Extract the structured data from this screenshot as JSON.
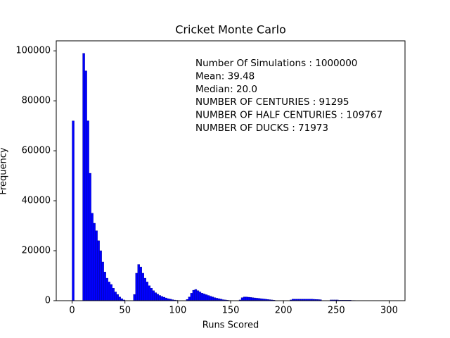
{
  "chart_data": {
    "type": "histogram",
    "title": "Cricket Monte Carlo",
    "x_label": "Runs Scored",
    "y_label": "Frequency",
    "annotation_lines": [
      "Number Of Simulations : 1000000",
      "Mean: 39.48",
      "Median: 20.0",
      "NUMBER OF CENTURIES : 91295",
      "NUMBER OF HALF CENTURIES : 109767",
      "NUMBER OF DUCKS : 71973"
    ],
    "color": "#0000ff",
    "edgecolor": "#00008b",
    "bins": [
      0,
      2,
      4,
      6,
      8,
      10,
      12,
      14,
      16,
      18,
      20,
      22,
      24,
      26,
      28,
      30,
      32,
      34,
      36,
      38,
      40,
      42,
      44,
      46,
      48,
      50,
      52,
      54,
      56,
      58,
      60,
      62,
      64,
      66,
      68,
      70,
      72,
      74,
      76,
      78,
      80,
      82,
      84,
      86,
      88,
      90,
      92,
      94,
      96,
      98,
      100,
      102,
      104,
      106,
      108,
      110,
      112,
      114,
      116,
      118,
      120,
      122,
      124,
      126,
      128,
      130,
      132,
      134,
      136,
      138,
      140,
      142,
      144,
      146,
      148,
      150,
      152,
      154,
      156,
      158,
      160,
      162,
      164,
      166,
      168,
      170,
      172,
      174,
      176,
      178,
      180,
      182,
      184,
      186,
      188,
      190,
      192,
      194,
      196,
      198,
      200,
      202,
      204,
      206,
      208,
      210,
      212,
      214,
      216,
      218,
      220,
      222,
      224,
      226,
      228,
      230,
      232,
      234,
      236,
      238,
      240,
      242,
      244,
      246,
      248,
      250,
      252,
      254,
      256,
      258,
      260,
      262,
      264,
      266,
      268,
      270,
      272,
      274,
      276,
      278,
      280,
      282,
      284,
      286,
      288,
      290,
      292,
      294,
      296,
      298,
      300
    ],
    "counts": [
      71973,
      0,
      0,
      0,
      0,
      99000,
      92000,
      72000,
      51000,
      35000,
      31000,
      28000,
      24000,
      20000,
      15500,
      11500,
      9000,
      7500,
      6500,
      5000,
      3500,
      2500,
      1500,
      800,
      300,
      0,
      0,
      0,
      0,
      2500,
      11000,
      14500,
      13500,
      11000,
      9000,
      7500,
      6000,
      5000,
      4000,
      3200,
      2600,
      2100,
      1700,
      1400,
      1100,
      800,
      600,
      400,
      250,
      150,
      0,
      0,
      0,
      0,
      500,
      1500,
      3000,
      4200,
      4500,
      4000,
      3500,
      3000,
      2700,
      2400,
      2100,
      1800,
      1500,
      1200,
      1000,
      800,
      600,
      400,
      300,
      200,
      100,
      0,
      0,
      0,
      0,
      300,
      1200,
      1500,
      1500,
      1400,
      1300,
      1200,
      1100,
      1000,
      900,
      800,
      700,
      600,
      500,
      400,
      300,
      200,
      0,
      0,
      0,
      0,
      0,
      0,
      0,
      300,
      600,
      600,
      600,
      600,
      600,
      600,
      600,
      600,
      600,
      600,
      550,
      500,
      450,
      400,
      0,
      0,
      0,
      0,
      300,
      300,
      300,
      300,
      200,
      200,
      200,
      200,
      200,
      200,
      100,
      100,
      0,
      0,
      0,
      0,
      0,
      0,
      0,
      0,
      0,
      0,
      0,
      0,
      0,
      0,
      0,
      0
    ],
    "xlim": [
      -15,
      315
    ],
    "ylim": [
      0,
      104000
    ],
    "xticks": [
      0,
      50,
      100,
      150,
      200,
      250,
      300
    ],
    "yticks": [
      0,
      20000,
      40000,
      60000,
      80000,
      100000
    ]
  }
}
